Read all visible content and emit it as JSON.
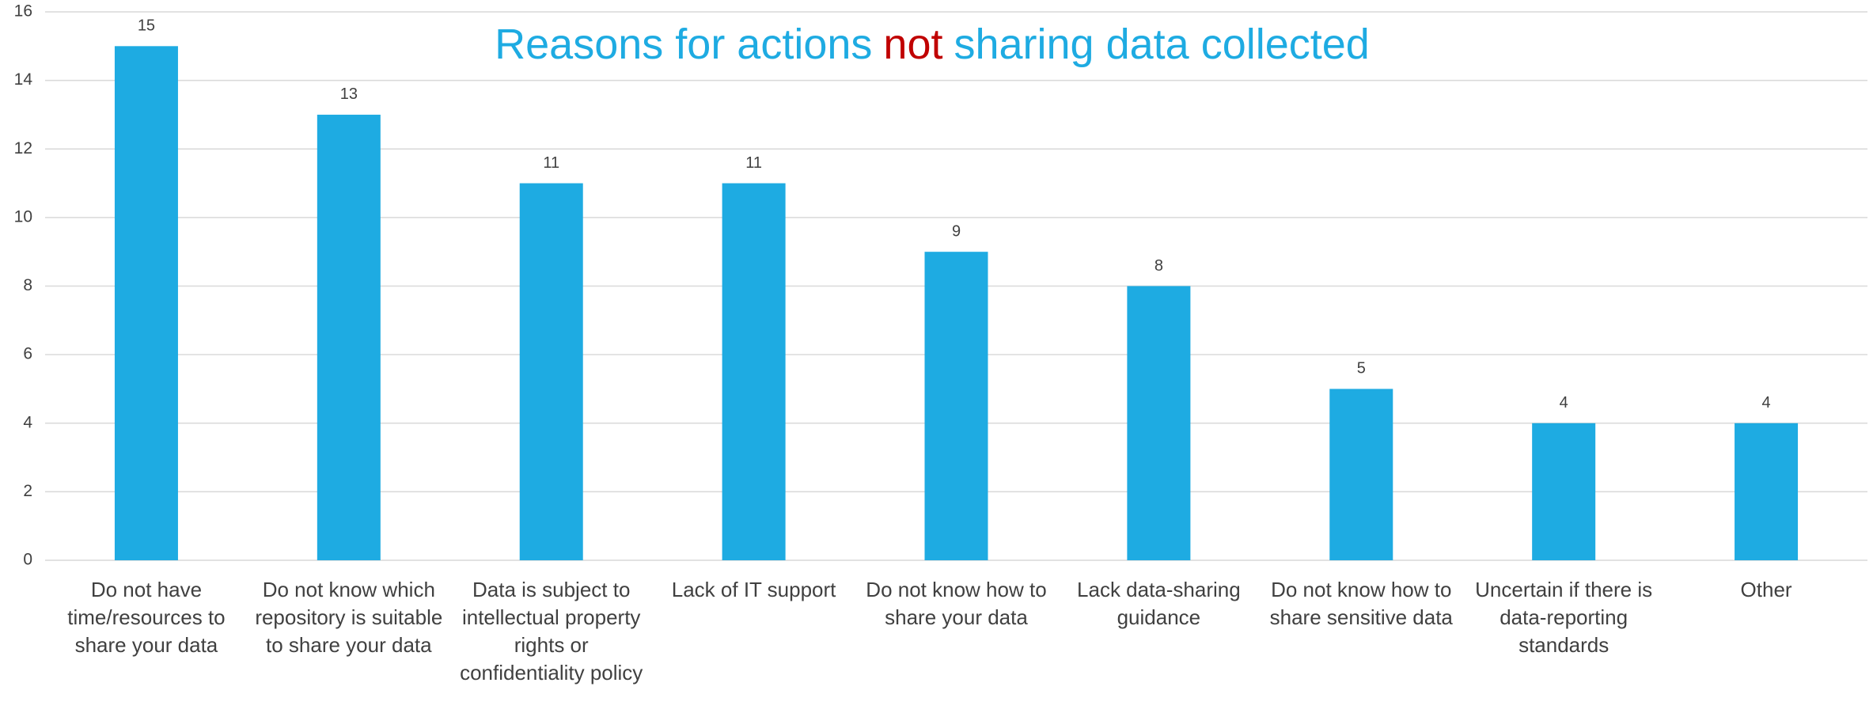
{
  "chart_data": {
    "type": "bar",
    "title": [
      {
        "text": "Reasons for actions",
        "color": "#1eabe2"
      },
      {
        "text": "not",
        "color": "#c00000"
      },
      {
        "text": "sharing data collected",
        "color": "#1eabe2"
      }
    ],
    "categories": [
      "Do not have time/resources to share your data",
      "Do not know which repository is suitable to share your data",
      "Data is subject to intellectual property rights or confidentiality policy",
      "Lack of IT support",
      "Do not know how to share your data",
      "Lack data-sharing guidance",
      "Do not know how to share sensitive data",
      "Uncertain if there is data-reporting standards",
      "Other"
    ],
    "values": [
      15,
      13,
      11,
      11,
      9,
      8,
      5,
      4,
      4
    ],
    "color": "#1eabe2",
    "ylim": [
      0,
      16
    ],
    "yticks": [
      0,
      2,
      4,
      6,
      8,
      10,
      12,
      14,
      16
    ],
    "grid": true
  }
}
